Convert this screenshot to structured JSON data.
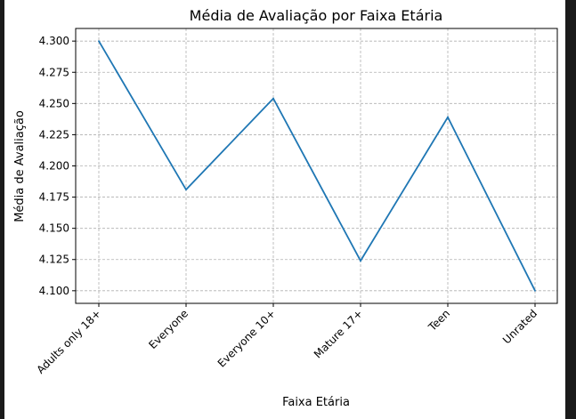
{
  "chart_data": {
    "type": "line",
    "title": "Média de Avaliação por Faixa Etária",
    "xlabel": "Faixa Etária",
    "ylabel": "Média de Avaliação",
    "categories": [
      "Adults only 18+",
      "Everyone",
      "Everyone 10+",
      "Mature 17+",
      "Teen",
      "Unrated"
    ],
    "series": [
      {
        "values": [
          4.3,
          4.181,
          4.254,
          4.124,
          4.239,
          4.1
        ]
      }
    ],
    "ylim": [
      4.0899,
      4.3101
    ],
    "yticks": [
      "4.100",
      "4.125",
      "4.150",
      "4.175",
      "4.200",
      "4.225",
      "4.250",
      "4.275",
      "4.300"
    ],
    "grid": true,
    "line_color": "#1f77b4",
    "grid_color": "#b0b0b0"
  }
}
